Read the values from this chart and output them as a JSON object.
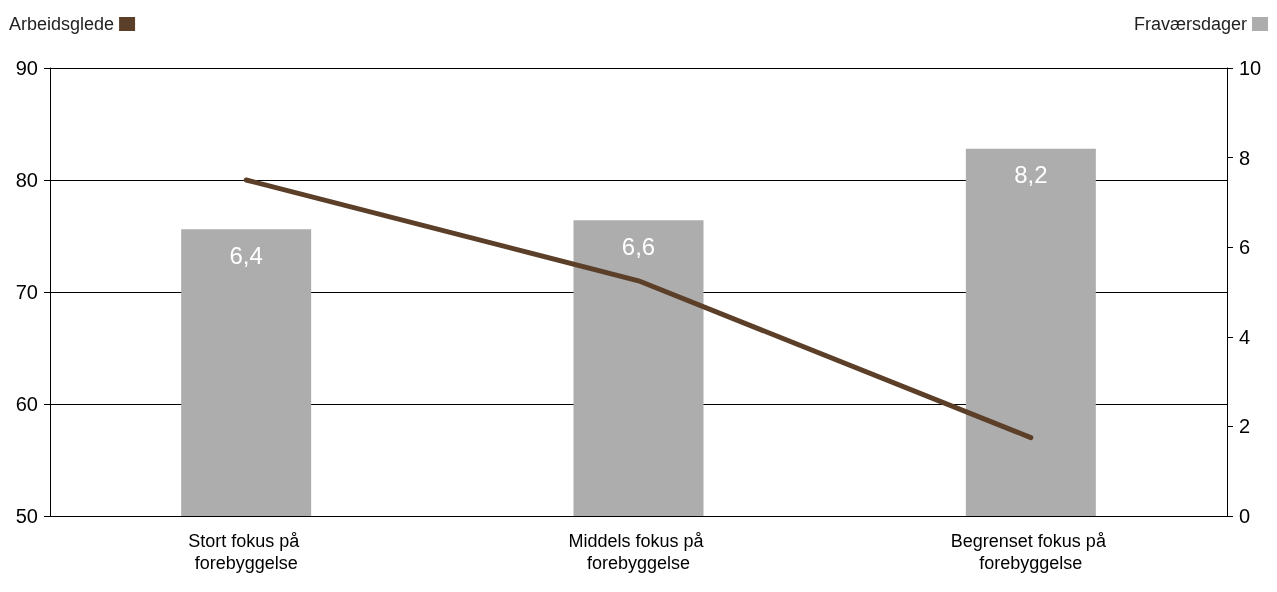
{
  "chart_data": {
    "type": "bar",
    "categories": [
      "Stort fokus på forebyggelse",
      "Middels fokus på forebyggelse",
      "Begrenset fokus på forebyggelse"
    ],
    "series": [
      {
        "name": "Arbeidsglede",
        "type": "line",
        "color": "#5b3f28",
        "values": [
          80,
          71,
          57
        ],
        "marker": "none"
      },
      {
        "name": "Fraværsdager",
        "color": "#adadad",
        "axis": "y2",
        "values": [
          6.4,
          6.6,
          8.2
        ],
        "value_labels": [
          "6,4",
          "6,6",
          "8,2"
        ]
      }
    ],
    "ylim": [
      50,
      90
    ],
    "yticks": [
      50,
      60,
      70,
      80,
      90
    ],
    "y2lim": [
      0,
      10
    ],
    "y2ticks": [
      0,
      2,
      4,
      6,
      8,
      10
    ],
    "grid": "y",
    "legend": "top"
  }
}
